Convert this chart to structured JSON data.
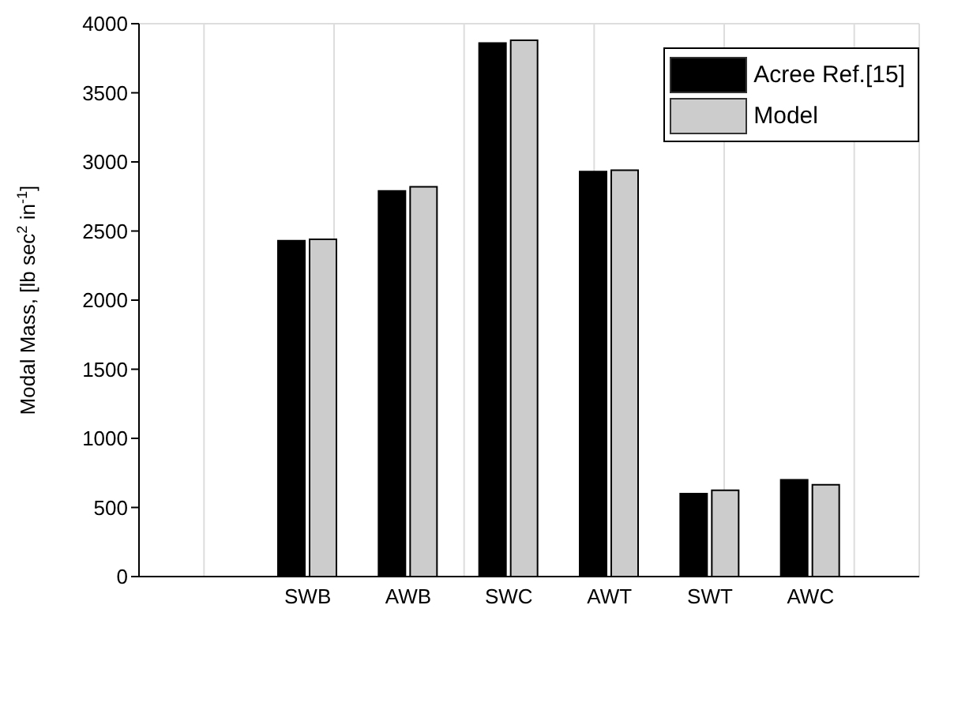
{
  "chart_data": {
    "type": "bar",
    "ylabel": "Modal Mass, [lb sec$^{2}$ in$^{-1}$]",
    "categories": [
      "SWB",
      "AWB",
      "SWC",
      "AWT",
      "SWT",
      "AWC"
    ],
    "series": [
      {
        "name": "Acree Ref.[15]",
        "color": "#000000",
        "values": [
          2430,
          2790,
          3860,
          2930,
          600,
          700
        ]
      },
      {
        "name": "Model",
        "color": "#cccccc",
        "values": [
          2440,
          2820,
          3880,
          2940,
          625,
          665
        ]
      }
    ],
    "ylim": [
      0,
      4000
    ],
    "yticks": [
      0,
      500,
      1000,
      1500,
      2000,
      2500,
      3000,
      3500,
      4000
    ],
    "grid": true,
    "legend": "top right"
  }
}
